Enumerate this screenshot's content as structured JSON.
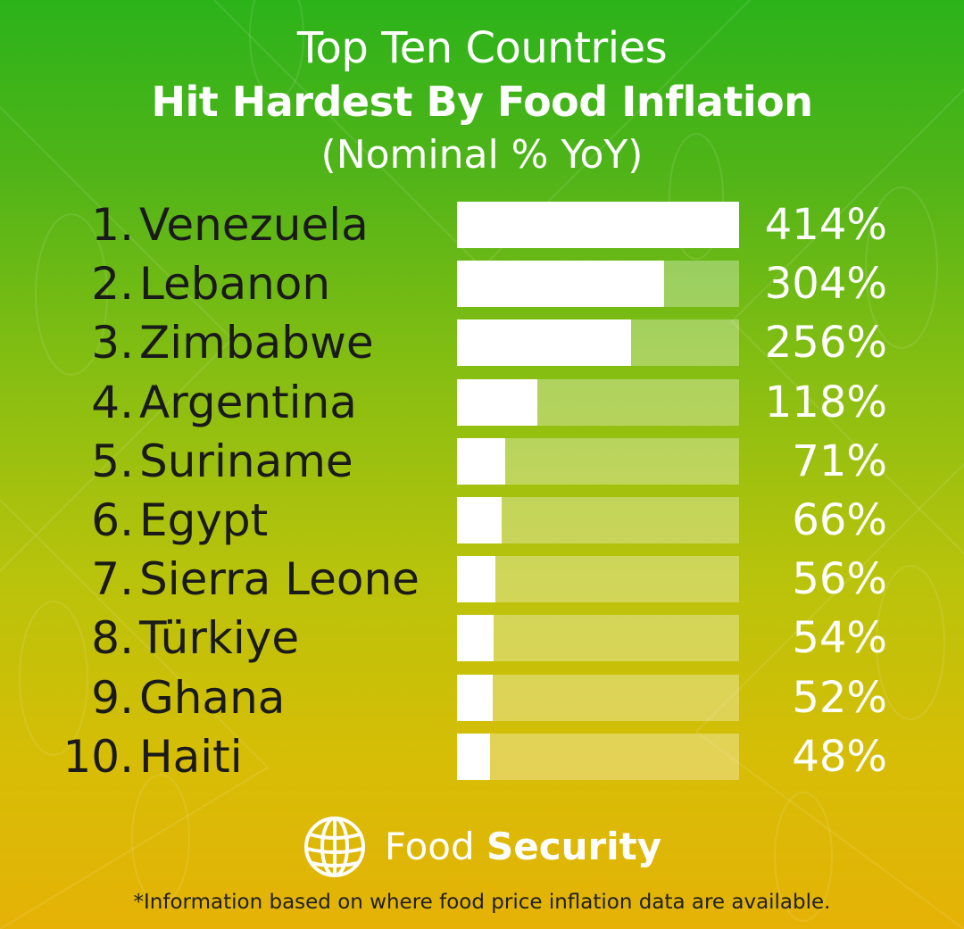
{
  "title": {
    "line1": "Top Ten Countries",
    "line2": "Hit Hardest By Food Inflation",
    "line3": "(Nominal % YoY)"
  },
  "chart_data": {
    "type": "bar",
    "orientation": "horizontal",
    "title": "Top Ten Countries Hit Hardest By Food Inflation (Nominal % YoY)",
    "ranks": [
      "1.",
      "2.",
      "3.",
      "4.",
      "5.",
      "6.",
      "7.",
      "8.",
      "9.",
      "10."
    ],
    "categories": [
      "Venezuela",
      "Lebanon",
      "Zimbabwe",
      "Argentina",
      "Suriname",
      "Egypt",
      "Sierra Leone",
      "Türkiye",
      "Ghana",
      "Haiti"
    ],
    "values": [
      414,
      304,
      256,
      118,
      71,
      66,
      56,
      54,
      52,
      48
    ],
    "value_labels": [
      "414%",
      "304%",
      "256%",
      "118%",
      "71%",
      "66%",
      "56%",
      "54%",
      "52%",
      "48%"
    ],
    "xlim": [
      0,
      414
    ],
    "grid": false,
    "colors": {
      "bar": "#ffffff",
      "track": "rgba(255,255,255,0.32)",
      "label_text": "#1a1a1a",
      "value_text": "#ffffff"
    }
  },
  "brand": {
    "icon": "globe-icon",
    "name_light": "Food",
    "name_bold": "Security"
  },
  "footnote": "*Information based on where food price inflation data are available.",
  "colors": {
    "gradient_top": "#2cb31a",
    "gradient_bottom": "#e5b205"
  }
}
